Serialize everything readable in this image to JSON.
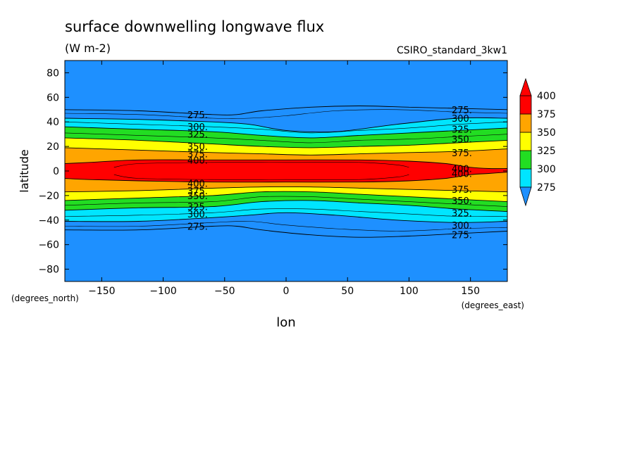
{
  "chart_data": {
    "type": "heatmap",
    "title": "surface downwelling longwave flux",
    "subtitle": "(W m-2)",
    "dataset_label": "CSIRO_standard_3kw1",
    "xlabel": "lon",
    "ylabel": "latitude",
    "x_unit_label": "(degrees_east)",
    "y_unit_label": "(degrees_north)",
    "xlim": [
      -180,
      180
    ],
    "ylim": [
      -90,
      90
    ],
    "x_ticks": [
      -150,
      -100,
      -50,
      0,
      50,
      100,
      150
    ],
    "y_ticks": [
      -80,
      -60,
      -40,
      -20,
      0,
      20,
      40,
      60,
      80
    ],
    "x_tick_labels": [
      "-150",
      "-100",
      "-50",
      "0",
      "50",
      "100",
      "150"
    ],
    "y_tick_labels": [
      "-80",
      "-60",
      "-40",
      "-20",
      "0",
      "20",
      "40",
      "60",
      "80"
    ],
    "colorbar": {
      "levels": [
        275,
        300,
        325,
        350,
        375,
        400
      ],
      "labels": [
        "275",
        "300",
        "325",
        "350",
        "375",
        "400"
      ],
      "colors": [
        "#1e90ff",
        "#00e5ff",
        "#22dd22",
        "#ffff00",
        "#ffa500",
        "#ff0000"
      ],
      "below_color": "#1e90ff",
      "above_color": "#ff0000"
    },
    "background_color": "#1e90ff",
    "bands": [
      {
        "level": 275,
        "color": "#1e90ff",
        "north": [
          [
            -180,
            50
          ],
          [
            -120,
            49
          ],
          [
            -60,
            46
          ],
          [
            -40,
            46
          ],
          [
            -20,
            49
          ],
          [
            20,
            52
          ],
          [
            60,
            53
          ],
          [
            100,
            52
          ],
          [
            140,
            51
          ],
          [
            180,
            50
          ]
        ],
        "south": [
          [
            -180,
            -48
          ],
          [
            -120,
            -48
          ],
          [
            -60,
            -45
          ],
          [
            -40,
            -45
          ],
          [
            -20,
            -48
          ],
          [
            20,
            -52
          ],
          [
            60,
            -54
          ],
          [
            100,
            -53
          ],
          [
            140,
            -51
          ],
          [
            180,
            -49
          ]
        ]
      },
      {
        "level": 300,
        "color": "#00e5ff",
        "north": [
          [
            -180,
            43
          ],
          [
            -120,
            42
          ],
          [
            -60,
            40
          ],
          [
            -30,
            38
          ],
          [
            0,
            33
          ],
          [
            40,
            32
          ],
          [
            90,
            38
          ],
          [
            140,
            43
          ],
          [
            180,
            43
          ]
        ],
        "south": [
          [
            -180,
            -41
          ],
          [
            -120,
            -41
          ],
          [
            -60,
            -38
          ],
          [
            -30,
            -36
          ],
          [
            0,
            -34
          ],
          [
            40,
            -36
          ],
          [
            90,
            -40
          ],
          [
            140,
            -42
          ],
          [
            180,
            -41
          ]
        ]
      },
      {
        "level": 325,
        "color": "#22dd22",
        "north": [
          [
            -180,
            36
          ],
          [
            -120,
            34
          ],
          [
            -60,
            32
          ],
          [
            -20,
            29
          ],
          [
            20,
            27
          ],
          [
            60,
            29
          ],
          [
            100,
            31
          ],
          [
            140,
            33
          ],
          [
            180,
            35
          ]
        ],
        "south": [
          [
            -180,
            -32
          ],
          [
            -120,
            -30
          ],
          [
            -60,
            -29
          ],
          [
            -20,
            -25
          ],
          [
            20,
            -24
          ],
          [
            60,
            -26
          ],
          [
            100,
            -28
          ],
          [
            140,
            -31
          ],
          [
            180,
            -33
          ]
        ]
      },
      {
        "level": 350,
        "color": "#ffff00",
        "north": [
          [
            -180,
            27
          ],
          [
            -120,
            25
          ],
          [
            -60,
            22
          ],
          [
            -20,
            20
          ],
          [
            20,
            19
          ],
          [
            60,
            20
          ],
          [
            100,
            21
          ],
          [
            140,
            23
          ],
          [
            180,
            25
          ]
        ],
        "south": [
          [
            -180,
            -24
          ],
          [
            -120,
            -22
          ],
          [
            -60,
            -20
          ],
          [
            -20,
            -17
          ],
          [
            20,
            -17
          ],
          [
            60,
            -19
          ],
          [
            100,
            -21
          ],
          [
            140,
            -23
          ],
          [
            180,
            -25
          ]
        ]
      },
      {
        "level": 375,
        "color": "#ffa500",
        "north": [
          [
            -180,
            19
          ],
          [
            -120,
            17
          ],
          [
            -60,
            15
          ],
          [
            -20,
            14
          ],
          [
            20,
            13
          ],
          [
            60,
            14
          ],
          [
            100,
            15
          ],
          [
            140,
            16
          ],
          [
            180,
            18
          ]
        ],
        "south": [
          [
            -180,
            -17
          ],
          [
            -120,
            -16
          ],
          [
            -60,
            -14
          ],
          [
            -20,
            -13
          ],
          [
            20,
            -13
          ],
          [
            60,
            -14
          ],
          [
            100,
            -15
          ],
          [
            140,
            -16
          ],
          [
            180,
            -17
          ]
        ]
      },
      {
        "level": 400,
        "color": "#ff0000",
        "north": [
          [
            -180,
            6
          ],
          [
            -160,
            7
          ],
          [
            -120,
            9
          ],
          [
            -60,
            9
          ],
          [
            0,
            9
          ],
          [
            60,
            9
          ],
          [
            100,
            8
          ],
          [
            130,
            6
          ],
          [
            150,
            3
          ],
          [
            165,
            2
          ],
          [
            180,
            2
          ]
        ],
        "south": [
          [
            -180,
            -6
          ],
          [
            -160,
            -7
          ],
          [
            -120,
            -8
          ],
          [
            -60,
            -9
          ],
          [
            0,
            -9
          ],
          [
            60,
            -9
          ],
          [
            100,
            -8
          ],
          [
            130,
            -6
          ],
          [
            150,
            -3
          ],
          [
            165,
            -2
          ],
          [
            180,
            -1
          ]
        ]
      }
    ],
    "inner_contours": [
      {
        "north": [
          [
            -180,
            47
          ],
          [
            -120,
            46
          ],
          [
            -60,
            43
          ],
          [
            -30,
            43
          ],
          [
            0,
            45
          ],
          [
            40,
            49
          ],
          [
            90,
            50
          ],
          [
            140,
            48
          ],
          [
            180,
            47
          ]
        ],
        "south": [
          [
            -180,
            -45
          ],
          [
            -120,
            -45
          ],
          [
            -60,
            -42
          ],
          [
            -30,
            -41
          ],
          [
            0,
            -44
          ],
          [
            40,
            -47
          ],
          [
            90,
            -49
          ],
          [
            140,
            -47
          ],
          [
            180,
            -46
          ]
        ]
      },
      {
        "north": [
          [
            -180,
            40
          ],
          [
            -120,
            38
          ],
          [
            -60,
            36
          ],
          [
            -20,
            34
          ],
          [
            20,
            31
          ],
          [
            60,
            33
          ],
          [
            100,
            35
          ],
          [
            140,
            38
          ],
          [
            180,
            40
          ]
        ],
        "south": [
          [
            -180,
            -37
          ],
          [
            -120,
            -36
          ],
          [
            -60,
            -34
          ],
          [
            -20,
            -31
          ],
          [
            20,
            -31
          ],
          [
            60,
            -33
          ],
          [
            100,
            -35
          ],
          [
            140,
            -37
          ],
          [
            180,
            -37
          ]
        ]
      },
      {
        "north": [
          [
            -180,
            31
          ],
          [
            -120,
            29
          ],
          [
            -60,
            27
          ],
          [
            -20,
            25
          ],
          [
            20,
            23
          ],
          [
            60,
            25
          ],
          [
            100,
            26
          ],
          [
            140,
            28
          ],
          [
            180,
            30
          ]
        ],
        "south": [
          [
            -180,
            -28
          ],
          [
            -120,
            -26
          ],
          [
            -60,
            -25
          ],
          [
            -20,
            -21
          ],
          [
            20,
            -21
          ],
          [
            60,
            -23
          ],
          [
            100,
            -25
          ],
          [
            140,
            -27
          ],
          [
            180,
            -29
          ]
        ]
      },
      {
        "north": [
          [
            -140,
            3
          ],
          [
            -120,
            6
          ],
          [
            -60,
            7
          ],
          [
            0,
            7
          ],
          [
            60,
            7
          ],
          [
            90,
            5
          ],
          [
            100,
            3
          ]
        ],
        "south": [
          [
            -140,
            -3
          ],
          [
            -120,
            -6
          ],
          [
            -60,
            -7
          ],
          [
            0,
            -7
          ],
          [
            60,
            -7
          ],
          [
            90,
            -5
          ],
          [
            100,
            -3
          ]
        ]
      }
    ],
    "contour_labels": [
      {
        "text": "275.",
        "lon": -72,
        "lat": 46
      },
      {
        "text": "300.",
        "lon": -72,
        "lat": 36
      },
      {
        "text": "325.",
        "lon": -72,
        "lat": 30
      },
      {
        "text": "350.",
        "lon": -72,
        "lat": 20
      },
      {
        "text": "375.",
        "lon": -72,
        "lat": 14
      },
      {
        "text": "400.",
        "lon": -72,
        "lat": 9
      },
      {
        "text": "400.",
        "lon": -72,
        "lat": -10
      },
      {
        "text": "375.",
        "lon": -72,
        "lat": -16
      },
      {
        "text": "350.",
        "lon": -72,
        "lat": -20
      },
      {
        "text": "325.",
        "lon": -72,
        "lat": -29
      },
      {
        "text": "300.",
        "lon": -72,
        "lat": -35
      },
      {
        "text": "275.",
        "lon": -72,
        "lat": -45
      },
      {
        "text": "275.",
        "lon": 143,
        "lat": 50
      },
      {
        "text": "300.",
        "lon": 143,
        "lat": 43
      },
      {
        "text": "325.",
        "lon": 143,
        "lat": 34
      },
      {
        "text": "350.",
        "lon": 143,
        "lat": 26
      },
      {
        "text": "375.",
        "lon": 143,
        "lat": 15
      },
      {
        "text": "400.",
        "lon": 143,
        "lat": 2
      },
      {
        "text": "400.",
        "lon": 143,
        "lat": -2
      },
      {
        "text": "375.",
        "lon": 143,
        "lat": -15
      },
      {
        "text": "350.",
        "lon": 143,
        "lat": -24
      },
      {
        "text": "325.",
        "lon": 143,
        "lat": -34
      },
      {
        "text": "300.",
        "lon": 143,
        "lat": -44
      },
      {
        "text": "275.",
        "lon": 143,
        "lat": -52
      }
    ]
  }
}
